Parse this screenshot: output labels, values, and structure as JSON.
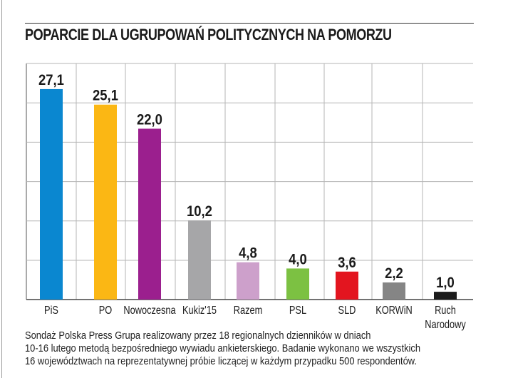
{
  "chart_data": {
    "type": "bar",
    "title": "POPARCIE DLA UGRUPOWAŃ POLITYCZNYCH NA POMORZU",
    "xlabel": "",
    "ylabel": "",
    "categories": [
      "PiS",
      "PO",
      "Nowoczesna",
      "Kukiz'15",
      "Razem",
      "PSL",
      "SLD",
      "KORWiN",
      "Ruch Narodowy"
    ],
    "category_lines": [
      [
        "PiS"
      ],
      [
        "PO"
      ],
      [
        "Nowoczesna"
      ],
      [
        "Kukiz'15"
      ],
      [
        "Razem"
      ],
      [
        "PSL"
      ],
      [
        "SLD"
      ],
      [
        "KORWiN"
      ],
      [
        "Ruch",
        "Narodowy"
      ]
    ],
    "values": [
      27.1,
      25.1,
      22.0,
      10.2,
      4.8,
      4.0,
      3.6,
      2.2,
      1.0
    ],
    "value_labels": [
      "27,1",
      "25,1",
      "22,0",
      "10,2",
      "4,8",
      "4,0",
      "3,6",
      "2,2",
      "1,0"
    ],
    "colors": [
      "#0a87d0",
      "#fbb714",
      "#9b1f8e",
      "#a6a6a8",
      "#cda0cb",
      "#7cc142",
      "#e3151f",
      "#858585",
      "#1c1c1c"
    ],
    "ylim": [
      0,
      30.4
    ],
    "grid": true,
    "legend": "none"
  },
  "footnote": {
    "lines": [
      "Sondaż Polska Press Grupa realizowany przez 18 regionalnych dzienników w dniach",
      "10-16 lutego metodą bezpośredniego wywiadu ankieterskiego. Badanie wykonano we wszystkich",
      "16 województwach na reprezentatywnej próbie liczącej w każdym przypadku 500 respondentów."
    ]
  }
}
